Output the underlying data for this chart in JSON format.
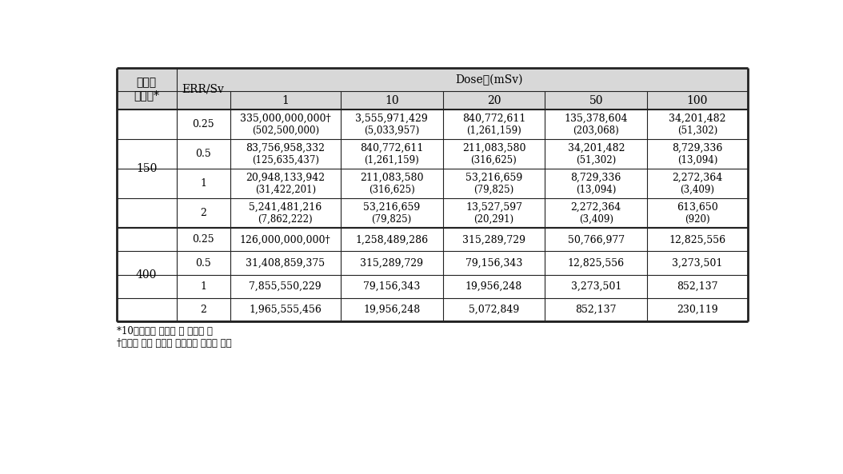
{
  "col_header1_left": "기저암\n위험도*",
  "col_header1_mid": "ERR/Sv",
  "col_header1_dose": "Dose（mSv）",
  "dose_subcols": [
    "1",
    "10",
    "20",
    "50",
    "100"
  ],
  "group1_label": "150",
  "group2_label": "400",
  "rows": [
    {
      "group": "150",
      "err": "0.25",
      "d1": "335,000,000,000†",
      "d1b": "(502,500,000)",
      "d10": "3,555,971,429",
      "d10b": "(5,033,957)",
      "d20": "840,772,611",
      "d20b": "(1,261,159)",
      "d50": "135,378,604",
      "d50b": "(203,068)",
      "d100": "34,201,482",
      "d100b": "(51,302)"
    },
    {
      "group": "150",
      "err": "0.5",
      "d1": "83,756,958,332",
      "d1b": "(125,635,437)",
      "d10": "840,772,611",
      "d10b": "(1,261,159)",
      "d20": "211,083,580",
      "d20b": "(316,625)",
      "d50": "34,201,482",
      "d50b": "(51,302)",
      "d100": "8,729,336",
      "d100b": "(13,094)"
    },
    {
      "group": "150",
      "err": "1",
      "d1": "20,948,133,942",
      "d1b": "(31,422,201)",
      "d10": "211,083,580",
      "d10b": "(316,625)",
      "d20": "53,216,659",
      "d20b": "(79,825)",
      "d50": "8,729,336",
      "d50b": "(13,094)",
      "d100": "2,272,364",
      "d100b": "(3,409)"
    },
    {
      "group": "150",
      "err": "2",
      "d1": "5,241,481,216",
      "d1b": "(7,862,222)",
      "d10": "53,216,659",
      "d10b": "(79,825)",
      "d20": "13,527,597",
      "d20b": "(20,291)",
      "d50": "2,272,364",
      "d50b": "(3,409)",
      "d100": "613,650",
      "d100b": "(920)"
    },
    {
      "group": "400",
      "err": "0.25",
      "d1": "126,000,000,000†",
      "d1b": "",
      "d10": "1,258,489,286",
      "d10b": "",
      "d20": "315,289,729",
      "d20b": "",
      "d50": "50,766,977",
      "d50b": "",
      "d100": "12,825,556",
      "d100b": ""
    },
    {
      "group": "400",
      "err": "0.5",
      "d1": "31,408,859,375",
      "d1b": "",
      "d10": "315,289,729",
      "d10b": "",
      "d20": "79,156,343",
      "d20b": "",
      "d50": "12,825,556",
      "d50b": "",
      "d100": "3,273,501",
      "d100b": ""
    },
    {
      "group": "400",
      "err": "1",
      "d1": "7,855,550,229",
      "d1b": "",
      "d10": "79,156,343",
      "d10b": "",
      "d20": "19,956,248",
      "d20b": "",
      "d50": "3,273,501",
      "d50b": "",
      "d100": "852,137",
      "d100b": ""
    },
    {
      "group": "400",
      "err": "2",
      "d1": "1,965,555,456",
      "d1b": "",
      "d10": "19,956,248",
      "d10b": "",
      "d20": "5,072,849",
      "d20b": "",
      "d50": "852,137",
      "d50b": "",
      "d100": "230,119",
      "d100b": ""
    }
  ],
  "footnote1": "*10만인년당 암발생 및 사망자 수",
  "footnote2": "†컴퓨터 연산 메모리 부족으로 근사값 적용",
  "border_color": "#222222",
  "header_bg": "#e0e0e0",
  "font_size": 9.0,
  "header_font_size": 10.0,
  "footnote_font_size": 8.5
}
